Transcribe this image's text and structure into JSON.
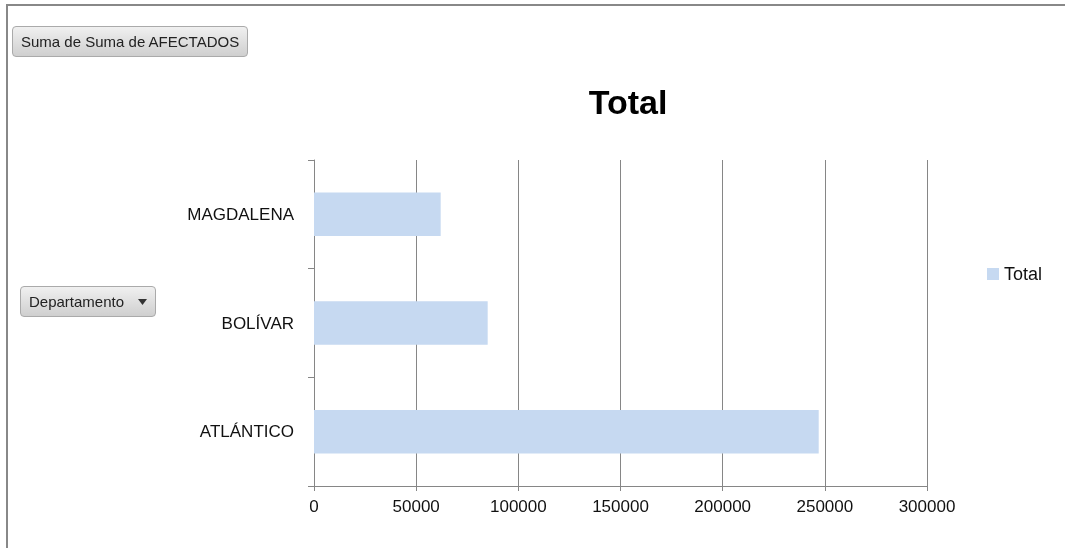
{
  "chart_data": {
    "type": "bar",
    "orientation": "horizontal",
    "title": "Total",
    "ylabel": "Departamento",
    "annotations": [
      "Suma de Suma de AFECTADOS"
    ],
    "categories": [
      "MAGDALENA",
      "BOLÍVAR",
      "ATLÁNTICO"
    ],
    "series": [
      {
        "name": "Total",
        "color": "#c6d9f1",
        "values": [
          62000,
          85000,
          247000
        ]
      }
    ],
    "xlim": [
      0,
      300000
    ],
    "xticks": [
      0,
      50000,
      100000,
      150000,
      200000,
      250000,
      300000
    ],
    "grid": "x",
    "legend": "right"
  }
}
